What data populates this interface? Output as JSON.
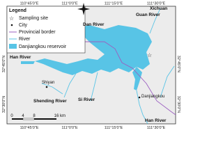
{
  "axes": {
    "top": [
      "110°45'0\"E",
      "111°0'0\"E",
      "111°15'0\"E",
      "111°30'0\"E"
    ],
    "bottom": [
      "110°45'0\"E",
      "111°0'0\"E",
      "111°15'0\"E",
      "111°30'0\"E"
    ],
    "left": [
      "32°45'0\"N",
      "32°30'0\"N"
    ],
    "right": [
      "32°45'0\"N",
      "32°30'0\"N"
    ]
  },
  "legend": {
    "title": "Legend",
    "items": [
      "Sampling site",
      "City",
      "Provincial border",
      "River",
      "Danjiangkou reservoir"
    ]
  },
  "places": {
    "xichuan": "Xichuan",
    "guan_river": "Guan River",
    "dan_river": "Dan River",
    "han_river_west": "Han River",
    "shiyan": "Shiyan",
    "shending_river": "Shending River",
    "si_river": "Si River",
    "danjiangkou": "Danjiangkou",
    "han_river_south": "Han River"
  },
  "scale": {
    "ticks": [
      "0",
      "4",
      "8",
      "16"
    ],
    "unit": "km"
  }
}
